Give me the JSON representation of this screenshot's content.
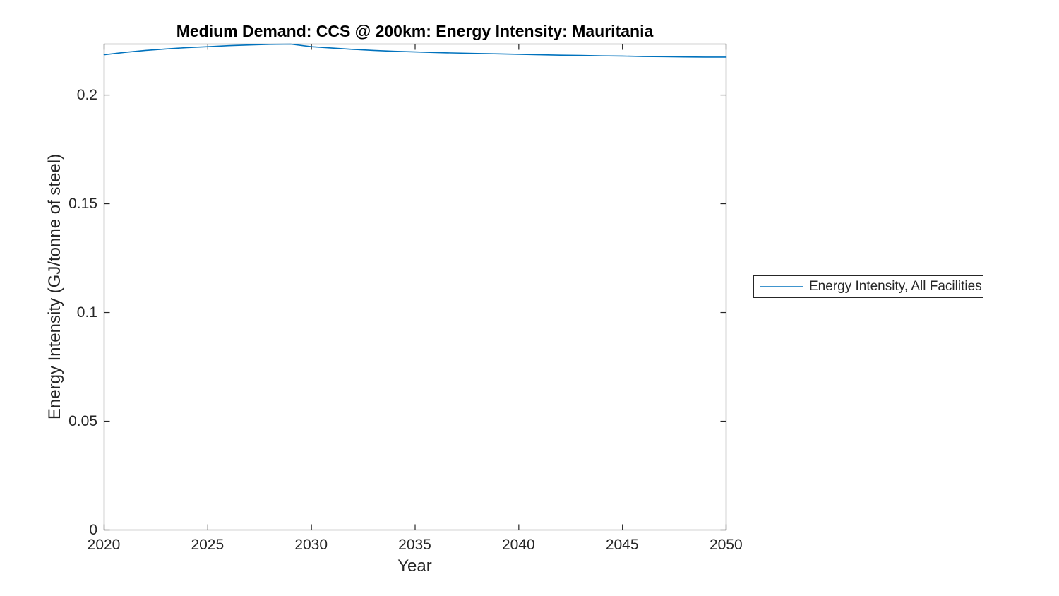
{
  "figure": {
    "background": "#ffffff"
  },
  "colors": {
    "axis": "#262626",
    "title_text": "#000000",
    "tick_text": "#262626",
    "line": "#0072BD"
  },
  "chart_data": {
    "type": "line",
    "title": "Medium Demand: CCS @ 200km: Energy Intensity: Mauritania",
    "xlabel": "Year",
    "ylabel": "Energy Intensity (GJ/tonne of steel)",
    "xlim": [
      2020,
      2050
    ],
    "ylim": [
      0,
      0.2234
    ],
    "grid": false,
    "box": true,
    "tick_direction": "in",
    "xticks": [
      2020,
      2025,
      2030,
      2035,
      2040,
      2045,
      2050
    ],
    "yticks": [
      0,
      0.05,
      0.1,
      0.15,
      0.2
    ],
    "xtick_labels": [
      "2020",
      "2025",
      "2030",
      "2035",
      "2040",
      "2045",
      "2050"
    ],
    "ytick_labels_top_down": [
      "0.2",
      "0.15",
      "0.1",
      "0.05",
      "0"
    ],
    "x": [
      2020,
      2021,
      2022,
      2023,
      2024,
      2025,
      2026,
      2027,
      2028,
      2029,
      2030,
      2031,
      2032,
      2033,
      2034,
      2035,
      2036,
      2037,
      2038,
      2039,
      2040,
      2041,
      2042,
      2043,
      2044,
      2045,
      2046,
      2047,
      2048,
      2049,
      2050
    ],
    "series": [
      {
        "name": "Energy Intensity, All Facilities",
        "color": "#0072BD",
        "values": [
          0.2185,
          0.2196,
          0.2205,
          0.2212,
          0.2218,
          0.2222,
          0.2227,
          0.223,
          0.2233,
          0.2234,
          0.2222,
          0.2216,
          0.221,
          0.2205,
          0.2201,
          0.2198,
          0.2195,
          0.2193,
          0.2191,
          0.2189,
          0.2187,
          0.2185,
          0.2183,
          0.2182,
          0.218,
          0.2179,
          0.2177,
          0.2176,
          0.2175,
          0.2174,
          0.2174
        ]
      }
    ],
    "legend": {
      "entries": [
        "Energy Intensity, All Facilities"
      ],
      "position": "right-outside"
    }
  }
}
